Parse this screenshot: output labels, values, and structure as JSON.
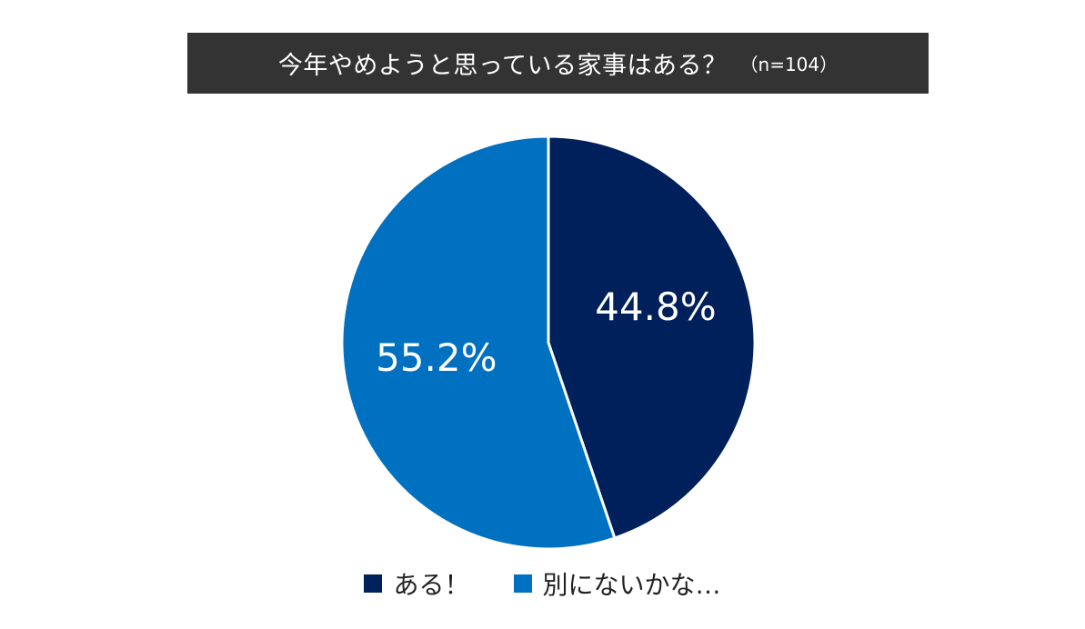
{
  "chart_data": {
    "type": "pie",
    "title": "今年やめようと思っている家事はある？",
    "subtitle": "（n=104）",
    "categories": [
      "ある！",
      "別にないかな…"
    ],
    "values": [
      44.8,
      55.2
    ],
    "value_labels": [
      "44.8%",
      "55.2%"
    ],
    "colors": [
      "#00205B",
      "#0070C0"
    ],
    "legend_position": "bottom",
    "start_angle_deg": 0,
    "direction": "clockwise"
  }
}
